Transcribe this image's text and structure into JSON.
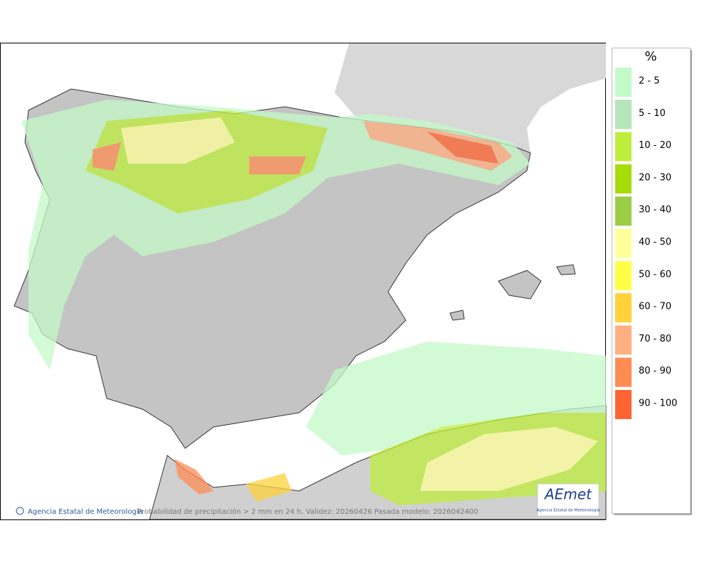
{
  "legend": {
    "title": "%",
    "items": [
      {
        "label": "2 - 5",
        "color": "#c3fac8"
      },
      {
        "label": "5 - 10",
        "color": "#b4e6b9"
      },
      {
        "label": "10 - 20",
        "color": "#beee3c"
      },
      {
        "label": "20 - 30",
        "color": "#a5dc0a"
      },
      {
        "label": "30 - 40",
        "color": "#9bcd46"
      },
      {
        "label": "40 - 50",
        "color": "#ffff9b"
      },
      {
        "label": "50 - 60",
        "color": "#ffff46"
      },
      {
        "label": "60 - 70",
        "color": "#ffd23c"
      },
      {
        "label": "70 - 80",
        "color": "#ffaf80"
      },
      {
        "label": "80 - 90",
        "color": "#ff8c55"
      },
      {
        "label": "90 - 100",
        "color": "#ff6432"
      }
    ]
  },
  "footer": {
    "credit": "Agencia Estatal de Meteorología",
    "caption": "Probabilidad de precipitación > 2 mm en 24 h. Validez: 20260426 Pasada modelo: 2026042400"
  },
  "logo": {
    "name": "AEmet",
    "subtitle": "Agencia Estatal de Meteorología"
  }
}
